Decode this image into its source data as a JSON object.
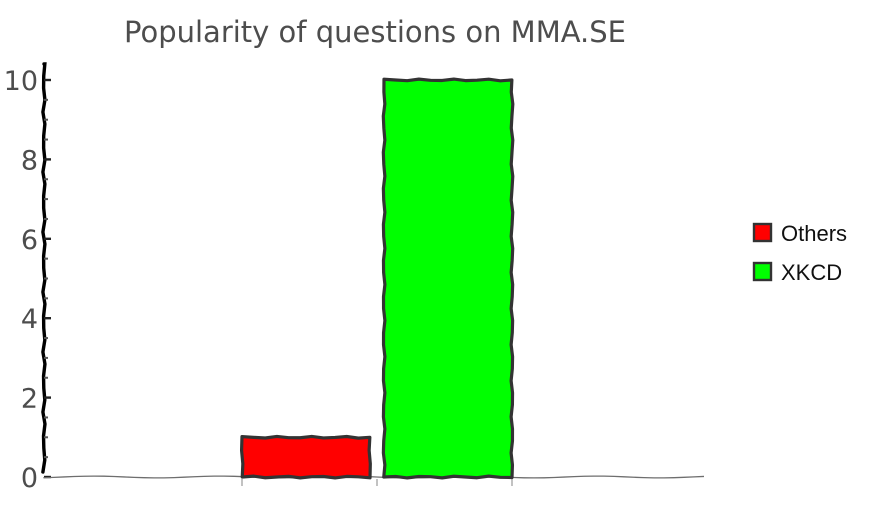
{
  "chart_data": {
    "type": "bar",
    "title": "Popularity of questions on MMA.SE",
    "xlabel": "",
    "ylabel": "",
    "ylim": [
      0,
      10
    ],
    "yticks": [
      0,
      2,
      4,
      6,
      8,
      10
    ],
    "grid": false,
    "legend_position": "right",
    "series": [
      {
        "name": "Others",
        "value": 1,
        "color": "#ff0000"
      },
      {
        "name": "XKCD",
        "value": 10,
        "color": "#00ff00"
      }
    ],
    "bar_edge_color": "#333333",
    "axis_color": "#000000"
  }
}
